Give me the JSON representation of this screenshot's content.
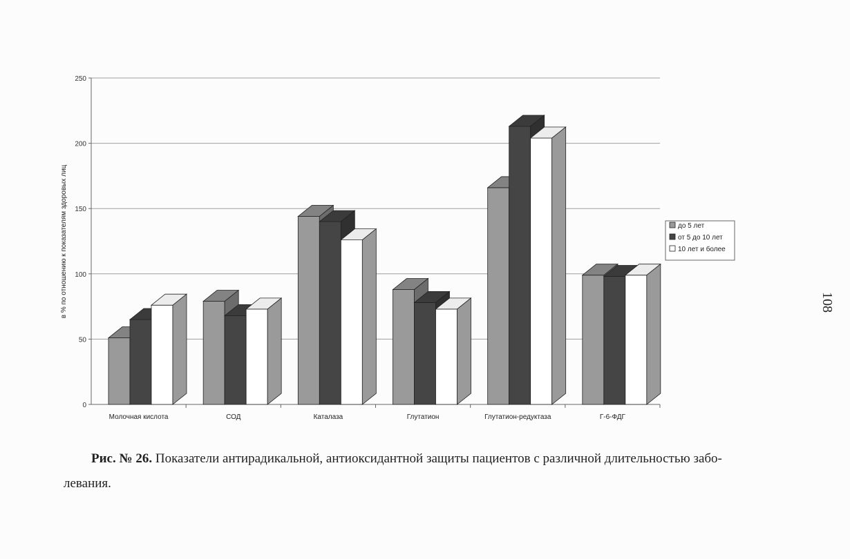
{
  "page_number": "108",
  "caption": {
    "label": "Рис. № 26.",
    "text": " Показатели антирадикальной, антиоксидантной защиты пациентов с различной длительностью забо-",
    "continuation": "левания."
  },
  "colors": {
    "series_1": "#9a9a9a",
    "series_2": "#454545",
    "series_3": "#ffffff",
    "grid": "#9e9e9e",
    "axis": "#666666"
  },
  "chart_data": {
    "type": "bar",
    "style": "3d-clustered-column",
    "title": "",
    "xlabel": "",
    "ylabel": "в % по отношению к показателям здоровых лиц",
    "ylim": [
      0,
      250
    ],
    "yticks": [
      0,
      50,
      100,
      150,
      200,
      250
    ],
    "grid": true,
    "legend_position": "right",
    "categories": [
      "Молочная кислота",
      "СОД",
      "Каталаза",
      "Глутатион",
      "Глутатион-редуктаза",
      "Г-6-ФДГ"
    ],
    "series": [
      {
        "name": "до 5 лет",
        "values": [
          51,
          79,
          144,
          88,
          166,
          99
        ]
      },
      {
        "name": "от 5 до 10 лет",
        "values": [
          65,
          68,
          140,
          78,
          213,
          98
        ]
      },
      {
        "name": "10 лет и более",
        "values": [
          76,
          73,
          126,
          73,
          204,
          99
        ]
      }
    ]
  }
}
